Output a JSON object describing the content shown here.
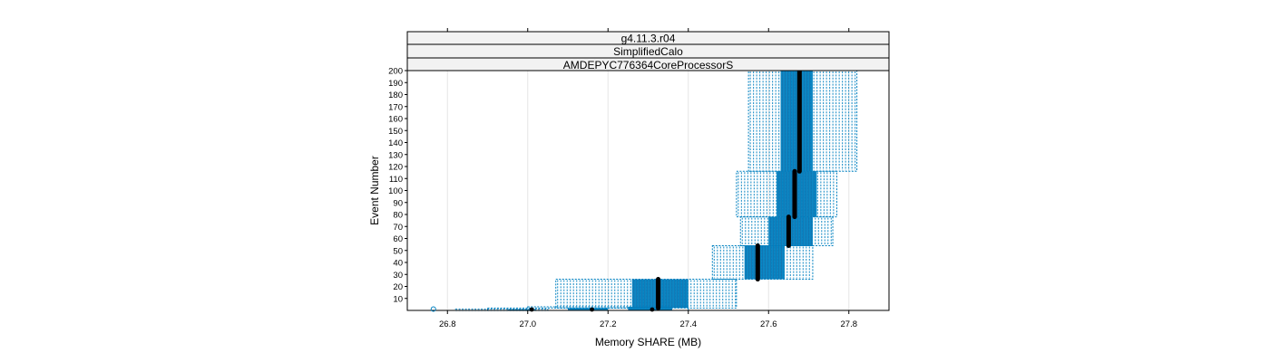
{
  "chart_data": {
    "type": "box-violin",
    "strips": [
      "g4.11.3.r04",
      "SimplifiedCalo",
      "AMDEPYC776364CoreProcessorS"
    ],
    "xlabel": "Memory SHARE (MB)",
    "ylabel": "Event Number",
    "xlim": [
      26.7,
      27.9
    ],
    "ylim": [
      0,
      200
    ],
    "x_ticks": [
      "26.8",
      "27.0",
      "27.2",
      "27.4",
      "27.6",
      "27.8"
    ],
    "y_ticks": [
      "10",
      "20",
      "30",
      "40",
      "50",
      "60",
      "70",
      "80",
      "90",
      "100",
      "110",
      "120",
      "130",
      "140",
      "150",
      "160",
      "170",
      "180",
      "190",
      "200"
    ],
    "grid": true,
    "boxes": [
      {
        "y_range": [
          0,
          1
        ],
        "whisker": [
          26.82,
          27.05
        ],
        "box": [
          26.95,
          27.02
        ],
        "median": 27.01
      },
      {
        "y_range": [
          0,
          2
        ],
        "whisker": [
          26.9,
          27.3
        ],
        "box": [
          27.1,
          27.2
        ],
        "median": 27.16
      },
      {
        "y_range": [
          0,
          3
        ],
        "whisker": [
          27.0,
          27.4
        ],
        "box": [
          27.25,
          27.36
        ],
        "median": 27.31
      },
      {
        "y_range": [
          2,
          26
        ],
        "whisker": [
          27.07,
          27.52
        ],
        "box": [
          27.26,
          27.4
        ],
        "median": 27.325
      },
      {
        "y_range": [
          26,
          54
        ],
        "whisker": [
          27.46,
          27.71
        ],
        "box": [
          27.54,
          27.64
        ],
        "median": 27.573
      },
      {
        "y_range": [
          54,
          78
        ],
        "whisker": [
          27.53,
          27.76
        ],
        "box": [
          27.6,
          27.71
        ],
        "median": 27.65
      },
      {
        "y_range": [
          78,
          116
        ],
        "whisker": [
          27.52,
          27.77
        ],
        "box": [
          27.62,
          27.72
        ],
        "median": 27.665
      },
      {
        "y_range": [
          116,
          200
        ],
        "whisker": [
          27.55,
          27.82
        ],
        "box": [
          27.63,
          27.71
        ],
        "median": 27.677
      }
    ],
    "outliers": [
      {
        "x": 26.765,
        "y": 0
      }
    ],
    "colors": {
      "box": "#0080c0",
      "median": "#000000",
      "strip": "#f2f2f2",
      "grid": "#e6e6e6"
    }
  }
}
